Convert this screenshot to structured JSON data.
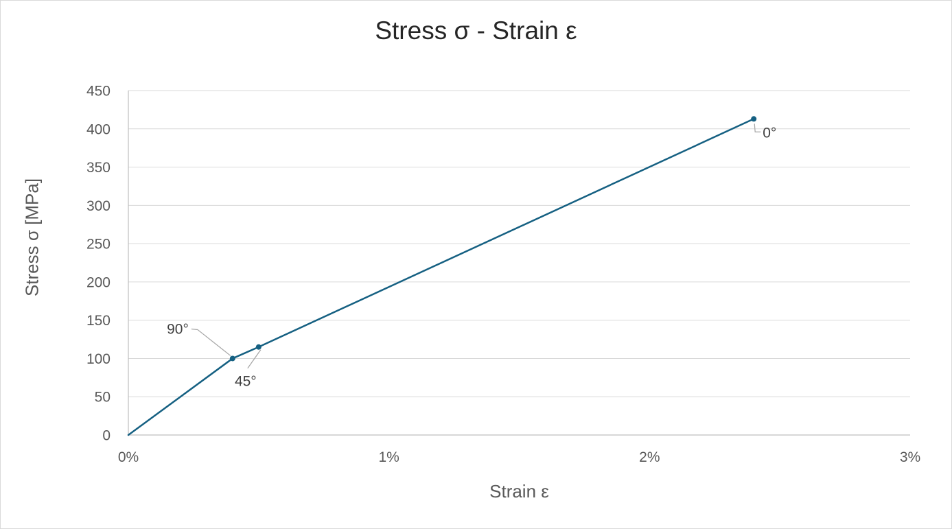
{
  "window": {
    "background": "#ffffff",
    "border_color": "#d9d9d9"
  },
  "chart_data": {
    "type": "line",
    "title": "Stress σ - Strain ε",
    "xlabel": "Strain ε",
    "ylabel": "Stress σ [MPa]",
    "xlim": [
      0,
      3
    ],
    "ylim": [
      0,
      450
    ],
    "grid": "horizontal",
    "legend": "none",
    "x_ticks": [
      {
        "value": 0,
        "label": "0%"
      },
      {
        "value": 1,
        "label": "1%"
      },
      {
        "value": 2,
        "label": "2%"
      },
      {
        "value": 3,
        "label": "3%"
      }
    ],
    "y_ticks": [
      {
        "value": 0,
        "label": "0"
      },
      {
        "value": 50,
        "label": "50"
      },
      {
        "value": 100,
        "label": "100"
      },
      {
        "value": 150,
        "label": "150"
      },
      {
        "value": 200,
        "label": "200"
      },
      {
        "value": 250,
        "label": "250"
      },
      {
        "value": 300,
        "label": "300"
      },
      {
        "value": 350,
        "label": "350"
      },
      {
        "value": 400,
        "label": "400"
      },
      {
        "value": 450,
        "label": "450"
      }
    ],
    "series": [
      {
        "name": "stress-strain-curve",
        "color": "#156082",
        "marker": "circle",
        "points": [
          {
            "x": 0,
            "y": 0,
            "marker": false
          },
          {
            "x": 0.4,
            "y": 100,
            "marker": true
          },
          {
            "x": 0.5,
            "y": 115,
            "marker": true
          },
          {
            "x": 2.4,
            "y": 413,
            "marker": true
          }
        ]
      }
    ],
    "annotations": [
      {
        "label": "90°",
        "x": 0.4,
        "y": 100,
        "placement": "upper-left"
      },
      {
        "label": "45°",
        "x": 0.5,
        "y": 115,
        "placement": "below"
      },
      {
        "label": "0°",
        "x": 2.4,
        "y": 413,
        "placement": "lower-right"
      }
    ],
    "colors": {
      "series": "#156082",
      "gridline": "#d9d9d9",
      "axis_line": "#bfbfbf",
      "tick_label": "#595959",
      "axis_title": "#595959",
      "chart_title": "#262626",
      "annotation_text": "#404040",
      "leader_line": "#a6a6a6"
    }
  }
}
